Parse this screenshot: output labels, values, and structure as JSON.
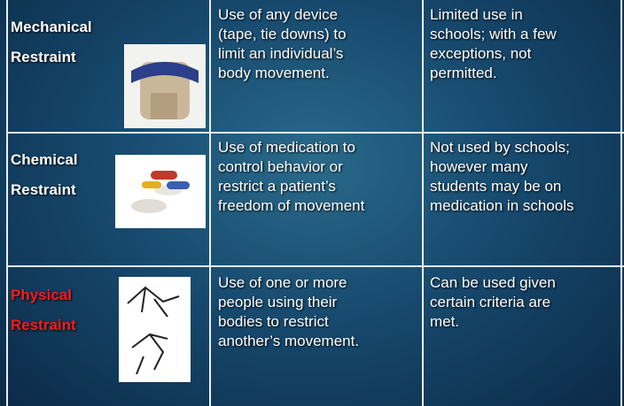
{
  "table": {
    "rows": [
      {
        "name": [
          "Mechanical",
          "Restraint"
        ],
        "description": [
          "Use of any device",
          "(tape, tie downs) to",
          "limit an individual’s",
          "body movement."
        ],
        "use": [
          "Limited use in",
          "schools; with a few",
          "exceptions, not",
          "permitted."
        ]
      },
      {
        "name": [
          "Chemical",
          "Restraint"
        ],
        "description": [
          "Use of medication to",
          "control behavior or",
          "restrict a patient’s",
          "freedom of movement"
        ],
        "use": [
          "Not used by schools;",
          "however many",
          "students may be on",
          "medication in schools"
        ]
      },
      {
        "name": [
          "Physical",
          "Restraint"
        ],
        "description": [
          "Use of one or more",
          "people using their",
          "bodies to restrict",
          "another’s movement."
        ],
        "use": [
          "Can be used given",
          "certain criteria are",
          "met."
        ]
      }
    ]
  }
}
